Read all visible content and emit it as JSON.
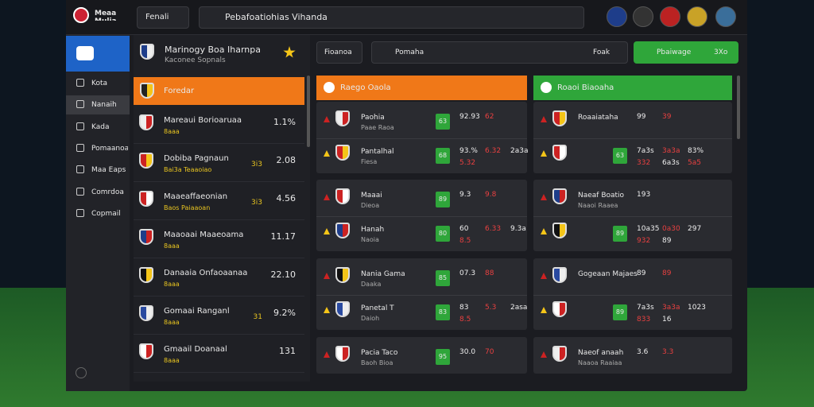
{
  "top_bar": {
    "brand": "Meaa Mulia",
    "filter": "Fenali",
    "search": "Pebafoatiohias Vihanda"
  },
  "sidebar": {
    "items": [
      "Kota",
      "Nanaih",
      "Kada",
      "Pomaanoa",
      "Maa Eaps",
      "Comrdoa",
      "Copmail"
    ]
  },
  "list": {
    "header": "Marinogy Boa Iharnpa",
    "header_sub": "Kaconee Sopnals",
    "selected": "Foredar",
    "rows": [
      {
        "name": "Mareaui Borioaruaa",
        "sub": "8aaa",
        "value": "1.1%"
      },
      {
        "name": "Dobiba Pagnaun",
        "sub": "Bai3a Teaaoiao",
        "extra": "3i3",
        "value": "2.08"
      },
      {
        "name": "Maaeaffaeonian",
        "sub": "Baos Paiaaoan",
        "extra": "3i3",
        "value": "4.56"
      },
      {
        "name": "Maaoaai Maaeoama",
        "sub": "8aaa",
        "value": "11.17"
      },
      {
        "name": "Danaaia Onfaoaanaa",
        "sub": "8aaa",
        "value": "22.10"
      },
      {
        "name": "Gomaai Ranganl",
        "sub": "8aaa",
        "extra": "31",
        "value": "9.2%"
      },
      {
        "name": "Gmaail Doanaal",
        "sub": "8aaa",
        "value": "131"
      }
    ]
  },
  "toolbar": {
    "filter": "Fioanoa",
    "search": "Pomaha",
    "sort": "Foak",
    "button": "Pbaiwage",
    "button_count": "3Xo"
  },
  "columns": [
    {
      "header": "Raego Oaola",
      "groups": [
        [
          {
            "team": "Paohia",
            "sub": "Paae Raoa",
            "badge": "63",
            "odds": [
              "92.93",
              "62"
            ]
          },
          {
            "team": "Pantalhal",
            "sub": "Fiesa",
            "badge": "68",
            "odds": [
              "93.%",
              "6.32",
              "2a3a",
              "5.32"
            ]
          }
        ],
        [
          {
            "team": "Maaai",
            "sub": "Dieoa",
            "badge": "89",
            "odds": [
              "9.3",
              "9.8"
            ]
          },
          {
            "team": "Hanah",
            "sub": "Naoia",
            "badge": "80",
            "odds": [
              "60",
              "6.33",
              "9.3a",
              "8.5"
            ]
          }
        ],
        [
          {
            "team": "Nania Gama",
            "sub": "Daaka",
            "badge": "85",
            "odds": [
              "07.3",
              "88"
            ]
          },
          {
            "team": "Panetal T",
            "sub": "Daioh",
            "badge": "83",
            "odds": [
              "83",
              "5.3",
              "2asa",
              "8.5"
            ]
          }
        ],
        [
          {
            "team": "Pacia Taco",
            "sub": "Baoh Bioa",
            "badge": "95",
            "odds": [
              "30.0",
              "70"
            ]
          }
        ]
      ]
    },
    {
      "header": "Roaoi Biaoaha",
      "groups": [
        [
          {
            "team": "Roaaiataha",
            "sub": "",
            "badge": "",
            "odds": [
              "99",
              "39"
            ]
          },
          {
            "team": "",
            "sub": "",
            "badge": "63",
            "odds": [
              "7a3s",
              "3a3a",
              "83%",
              "332",
              "6a3s",
              "5a5"
            ]
          }
        ],
        [
          {
            "team": "Naeaf Boatio",
            "sub": "Naaoi Raaea",
            "badge": "",
            "odds": [
              "193"
            ]
          },
          {
            "team": "",
            "sub": "",
            "badge": "89",
            "odds": [
              "10a35",
              "0a30",
              "297",
              "932",
              "89"
            ]
          }
        ],
        [
          {
            "team": "Gogeaan Majaes",
            "sub": "",
            "badge": "",
            "odds": [
              "89",
              "89"
            ]
          },
          {
            "team": "",
            "sub": "",
            "badge": "89",
            "odds": [
              "7a3s",
              "3a3a",
              "1023",
              "833",
              "16"
            ]
          }
        ],
        [
          {
            "team": "Naeof anaah",
            "sub": "Naaoa Raaiaa",
            "badge": "",
            "odds": [
              "3.6",
              "3.3"
            ]
          }
        ]
      ]
    }
  ]
}
